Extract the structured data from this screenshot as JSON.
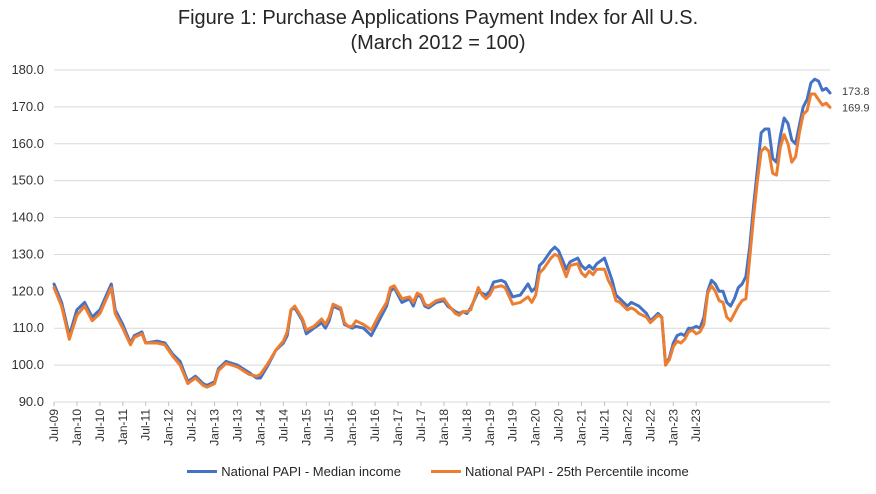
{
  "chart_data": {
    "type": "line",
    "title": "Figure 1: Purchase Applications Payment Index for All U.S.",
    "subtitle": "(March 2012 = 100)",
    "xlabel": "",
    "ylabel": "",
    "ylim": [
      90,
      180
    ],
    "yticks": [
      "90.0",
      "100.0",
      "110.0",
      "120.0",
      "130.0",
      "140.0",
      "150.0",
      "160.0",
      "170.0",
      "180.0"
    ],
    "grid": true,
    "legend_position": "bottom",
    "x_start": "Jul-09",
    "x_end": "Oct-23",
    "x_tick_labels": [
      "Jul-09",
      "Jan-10",
      "Jul-10",
      "Jan-11",
      "Jul-11",
      "Jan-12",
      "Jul-12",
      "Jan-13",
      "Jul-13",
      "Jan-14",
      "Jul-14",
      "Jan-15",
      "Jul-15",
      "Jan-16",
      "Jul-16",
      "Jan-17",
      "Jul-17",
      "Jan-18",
      "Jul-18",
      "Jan-19",
      "Jul-19",
      "Jan-20",
      "Jul-20",
      "Jan-21",
      "Jul-21",
      "Jan-22",
      "Jul-22",
      "Jan-23",
      "Jul-23"
    ],
    "series": [
      {
        "name": "National PAPI - Median income",
        "color": "#4472C4",
        "end_label": "173.8",
        "anchors": [
          [
            0,
            122.0
          ],
          [
            2,
            117.0
          ],
          [
            4,
            108.0
          ],
          [
            6,
            115.0
          ],
          [
            8,
            117.0
          ],
          [
            10,
            113.0
          ],
          [
            12,
            115.0
          ],
          [
            15,
            122.0
          ],
          [
            16,
            115.0
          ],
          [
            18,
            111.0
          ],
          [
            20,
            106.0
          ],
          [
            21,
            108.0
          ],
          [
            23,
            109.0
          ],
          [
            24,
            106.0
          ],
          [
            27,
            106.5
          ],
          [
            29,
            106.0
          ],
          [
            31,
            103.0
          ],
          [
            33,
            101.0
          ],
          [
            35,
            95.5
          ],
          [
            37,
            97.0
          ],
          [
            39,
            95.0
          ],
          [
            40,
            94.5
          ],
          [
            42,
            95.5
          ],
          [
            43,
            99.0
          ],
          [
            45,
            101.0
          ],
          [
            48,
            100.0
          ],
          [
            51,
            98.0
          ],
          [
            53,
            96.5
          ],
          [
            54,
            96.5
          ],
          [
            56,
            100.0
          ],
          [
            58,
            104.0
          ],
          [
            60,
            106.0
          ],
          [
            61,
            108.0
          ],
          [
            62,
            115.0
          ],
          [
            63,
            115.5
          ],
          [
            65,
            112.0
          ],
          [
            66,
            108.5
          ],
          [
            68,
            110.0
          ],
          [
            70,
            111.5
          ],
          [
            71,
            110.0
          ],
          [
            72,
            112.0
          ],
          [
            73,
            116.0
          ],
          [
            75,
            115.0
          ],
          [
            76,
            111.0
          ],
          [
            77,
            110.5
          ],
          [
            78,
            110.0
          ],
          [
            79,
            110.5
          ],
          [
            81,
            110.0
          ],
          [
            83,
            108.0
          ],
          [
            85,
            112.0
          ],
          [
            87,
            116.0
          ],
          [
            88,
            120.0
          ],
          [
            89,
            121.0
          ],
          [
            91,
            117.0
          ],
          [
            93,
            118.0
          ],
          [
            94,
            116.0
          ],
          [
            95,
            119.0
          ],
          [
            96,
            118.5
          ],
          [
            97,
            116.0
          ],
          [
            98,
            115.5
          ],
          [
            100,
            117.0
          ],
          [
            102,
            117.5
          ],
          [
            103,
            116.0
          ],
          [
            105,
            114.5
          ],
          [
            106,
            114.0
          ],
          [
            107,
            114.5
          ],
          [
            108,
            114.0
          ],
          [
            109,
            115.5
          ],
          [
            111,
            120.0
          ],
          [
            112,
            119.5
          ],
          [
            113,
            119.0
          ],
          [
            114,
            120.0
          ],
          [
            115,
            122.5
          ],
          [
            117,
            123.0
          ],
          [
            118,
            122.5
          ],
          [
            120,
            118.5
          ],
          [
            122,
            119.0
          ],
          [
            124,
            122.0
          ],
          [
            125,
            120.0
          ],
          [
            126,
            121.0
          ],
          [
            127,
            127.0
          ],
          [
            128,
            128.0
          ],
          [
            130,
            131.0
          ],
          [
            131,
            132.0
          ],
          [
            132,
            131.0
          ],
          [
            134,
            126.0
          ],
          [
            135,
            128.0
          ],
          [
            137,
            129.0
          ],
          [
            138,
            127.0
          ],
          [
            139,
            126.0
          ],
          [
            140,
            127.0
          ],
          [
            141,
            126.0
          ],
          [
            142,
            127.5
          ],
          [
            144,
            129.0
          ],
          [
            145,
            126.0
          ],
          [
            146,
            123.0
          ],
          [
            147,
            119.0
          ],
          [
            148,
            118.0
          ],
          [
            150,
            116.0
          ],
          [
            151,
            117.0
          ],
          [
            152,
            116.5
          ],
          [
            153,
            116.0
          ],
          [
            155,
            114.0
          ],
          [
            156,
            112.0
          ],
          [
            157,
            113.0
          ],
          [
            158,
            114.0
          ],
          [
            159,
            113.0
          ],
          [
            160,
            100.0
          ],
          [
            161,
            102.0
          ],
          [
            162,
            106.0
          ],
          [
            163,
            108.0
          ],
          [
            164,
            108.5
          ],
          [
            165,
            108.0
          ],
          [
            166,
            110.0
          ],
          [
            167,
            110.0
          ],
          [
            168,
            110.5
          ],
          [
            169,
            110.0
          ],
          [
            170,
            113.0
          ],
          [
            171,
            120.0
          ],
          [
            172,
            123.0
          ],
          [
            173,
            122.0
          ],
          [
            174,
            120.0
          ],
          [
            175,
            120.0
          ],
          [
            176,
            117.0
          ],
          [
            177,
            116.0
          ],
          [
            178,
            118.0
          ],
          [
            179,
            121.0
          ],
          [
            180,
            122.0
          ],
          [
            181,
            124.0
          ],
          [
            182,
            132.0
          ],
          [
            183,
            143.0
          ],
          [
            184,
            153.0
          ],
          [
            185,
            163.0
          ],
          [
            186,
            164.0
          ],
          [
            187,
            164.0
          ],
          [
            188,
            156.0
          ],
          [
            189,
            155.0
          ],
          [
            190,
            162.0
          ],
          [
            191,
            167.0
          ],
          [
            192,
            165.5
          ],
          [
            193,
            161.0
          ],
          [
            194,
            160.0
          ],
          [
            195,
            165.0
          ],
          [
            196,
            170.0
          ],
          [
            197,
            172.0
          ],
          [
            198,
            176.5
          ],
          [
            199,
            177.5
          ],
          [
            200,
            177.0
          ],
          [
            201,
            174.5
          ],
          [
            202,
            175.0
          ],
          [
            203,
            173.8
          ]
        ]
      },
      {
        "name": "National PAPI - 25th Percentile income",
        "color": "#ED7D31",
        "end_label": "169.9",
        "anchors": [
          [
            0,
            121.0
          ],
          [
            2,
            116.0
          ],
          [
            4,
            107.0
          ],
          [
            6,
            113.5
          ],
          [
            8,
            116.0
          ],
          [
            10,
            112.0
          ],
          [
            12,
            114.0
          ],
          [
            15,
            121.0
          ],
          [
            16,
            114.0
          ],
          [
            18,
            110.0
          ],
          [
            20,
            105.5
          ],
          [
            21,
            107.5
          ],
          [
            23,
            108.5
          ],
          [
            24,
            106.0
          ],
          [
            27,
            106.0
          ],
          [
            29,
            105.5
          ],
          [
            31,
            102.5
          ],
          [
            33,
            100.0
          ],
          [
            35,
            95.0
          ],
          [
            37,
            96.5
          ],
          [
            39,
            94.5
          ],
          [
            40,
            94.0
          ],
          [
            42,
            95.0
          ],
          [
            43,
            98.5
          ],
          [
            45,
            100.5
          ],
          [
            48,
            99.5
          ],
          [
            51,
            97.5
          ],
          [
            53,
            97.0
          ],
          [
            54,
            97.5
          ],
          [
            56,
            100.5
          ],
          [
            58,
            104.0
          ],
          [
            60,
            106.5
          ],
          [
            61,
            109.0
          ],
          [
            62,
            115.0
          ],
          [
            63,
            116.0
          ],
          [
            65,
            112.5
          ],
          [
            66,
            109.5
          ],
          [
            68,
            110.5
          ],
          [
            70,
            112.5
          ],
          [
            71,
            111.0
          ],
          [
            72,
            113.0
          ],
          [
            73,
            116.5
          ],
          [
            75,
            115.5
          ],
          [
            76,
            111.5
          ],
          [
            77,
            110.5
          ],
          [
            78,
            110.5
          ],
          [
            79,
            112.0
          ],
          [
            81,
            111.0
          ],
          [
            83,
            109.5
          ],
          [
            85,
            113.5
          ],
          [
            87,
            117.0
          ],
          [
            88,
            121.0
          ],
          [
            89,
            121.5
          ],
          [
            91,
            118.0
          ],
          [
            93,
            118.5
          ],
          [
            94,
            117.0
          ],
          [
            95,
            119.5
          ],
          [
            96,
            119.0
          ],
          [
            97,
            116.5
          ],
          [
            98,
            116.0
          ],
          [
            100,
            117.5
          ],
          [
            102,
            118.0
          ],
          [
            103,
            116.5
          ],
          [
            105,
            114.0
          ],
          [
            106,
            113.5
          ],
          [
            107,
            114.5
          ],
          [
            108,
            114.5
          ],
          [
            109,
            115.0
          ],
          [
            111,
            121.0
          ],
          [
            112,
            119.0
          ],
          [
            113,
            118.0
          ],
          [
            114,
            119.0
          ],
          [
            115,
            121.0
          ],
          [
            117,
            121.5
          ],
          [
            118,
            121.0
          ],
          [
            120,
            116.5
          ],
          [
            122,
            117.0
          ],
          [
            124,
            118.5
          ],
          [
            125,
            117.0
          ],
          [
            126,
            119.0
          ],
          [
            127,
            125.0
          ],
          [
            128,
            126.0
          ],
          [
            130,
            129.0
          ],
          [
            131,
            130.0
          ],
          [
            132,
            129.5
          ],
          [
            134,
            124.0
          ],
          [
            135,
            127.0
          ],
          [
            137,
            127.5
          ],
          [
            138,
            125.0
          ],
          [
            139,
            124.0
          ],
          [
            140,
            125.5
          ],
          [
            141,
            124.5
          ],
          [
            142,
            126.0
          ],
          [
            144,
            126.0
          ],
          [
            145,
            123.0
          ],
          [
            146,
            121.0
          ],
          [
            147,
            117.5
          ],
          [
            148,
            117.0
          ],
          [
            150,
            115.0
          ],
          [
            151,
            115.5
          ],
          [
            152,
            115.0
          ],
          [
            153,
            114.0
          ],
          [
            155,
            113.0
          ],
          [
            156,
            111.5
          ],
          [
            157,
            112.5
          ],
          [
            158,
            113.5
          ],
          [
            159,
            113.0
          ],
          [
            160,
            100.0
          ],
          [
            161,
            101.5
          ],
          [
            162,
            105.0
          ],
          [
            163,
            106.5
          ],
          [
            164,
            106.0
          ],
          [
            165,
            107.0
          ],
          [
            166,
            109.0
          ],
          [
            167,
            109.5
          ],
          [
            168,
            108.5
          ],
          [
            169,
            109.0
          ],
          [
            170,
            111.0
          ],
          [
            171,
            119.5
          ],
          [
            172,
            121.5
          ],
          [
            173,
            120.0
          ],
          [
            174,
            117.5
          ],
          [
            175,
            117.0
          ],
          [
            176,
            113.0
          ],
          [
            177,
            112.0
          ],
          [
            178,
            114.0
          ],
          [
            179,
            116.0
          ],
          [
            180,
            117.5
          ],
          [
            181,
            118.0
          ],
          [
            182,
            129.0
          ],
          [
            183,
            140.0
          ],
          [
            184,
            150.0
          ],
          [
            185,
            158.0
          ],
          [
            186,
            159.0
          ],
          [
            187,
            158.0
          ],
          [
            188,
            152.0
          ],
          [
            189,
            151.5
          ],
          [
            190,
            159.0
          ],
          [
            191,
            162.5
          ],
          [
            192,
            160.0
          ],
          [
            193,
            155.0
          ],
          [
            194,
            156.5
          ],
          [
            195,
            163.0
          ],
          [
            196,
            168.0
          ],
          [
            197,
            169.0
          ],
          [
            198,
            173.5
          ],
          [
            199,
            173.5
          ],
          [
            200,
            172.0
          ],
          [
            201,
            170.5
          ],
          [
            202,
            171.0
          ],
          [
            203,
            169.9
          ]
        ]
      }
    ]
  }
}
